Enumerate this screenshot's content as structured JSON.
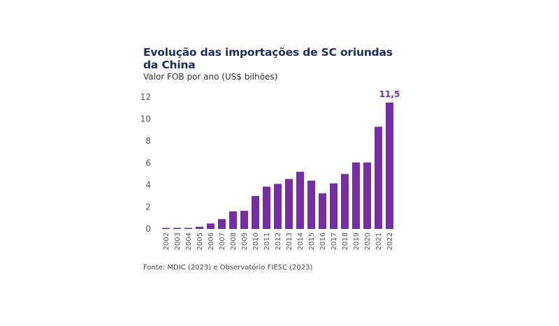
{
  "chart_data": {
    "type": "bar",
    "title": "Evolução das importações de SC oriundas da China",
    "subtitle": "Valor FOB por ano (US$ bilhões)",
    "source": "Fonte: MDIC (2023) e Observatório FIESC (2023)",
    "categories": [
      "2002",
      "2003",
      "2004",
      "2005",
      "2006",
      "2007",
      "2008",
      "2009",
      "2010",
      "2011",
      "2012",
      "2013",
      "2014",
      "2015",
      "2016",
      "2017",
      "2018",
      "2019",
      "2020",
      "2021",
      "2022"
    ],
    "values": [
      0.1,
      0.1,
      0.1,
      0.2,
      0.5,
      0.9,
      1.6,
      1.65,
      3.0,
      3.85,
      4.1,
      4.55,
      5.2,
      4.4,
      3.25,
      4.15,
      5.0,
      6.05,
      6.05,
      9.3,
      11.5
    ],
    "data_labels": {
      "2022": "11,5"
    },
    "yticks": [
      "0",
      "2",
      "4",
      "6",
      "8",
      "10",
      "12"
    ],
    "ylim": [
      0,
      12
    ],
    "grid": false,
    "bar_color": "#7030a0",
    "title_color": "#1f2b5e"
  }
}
